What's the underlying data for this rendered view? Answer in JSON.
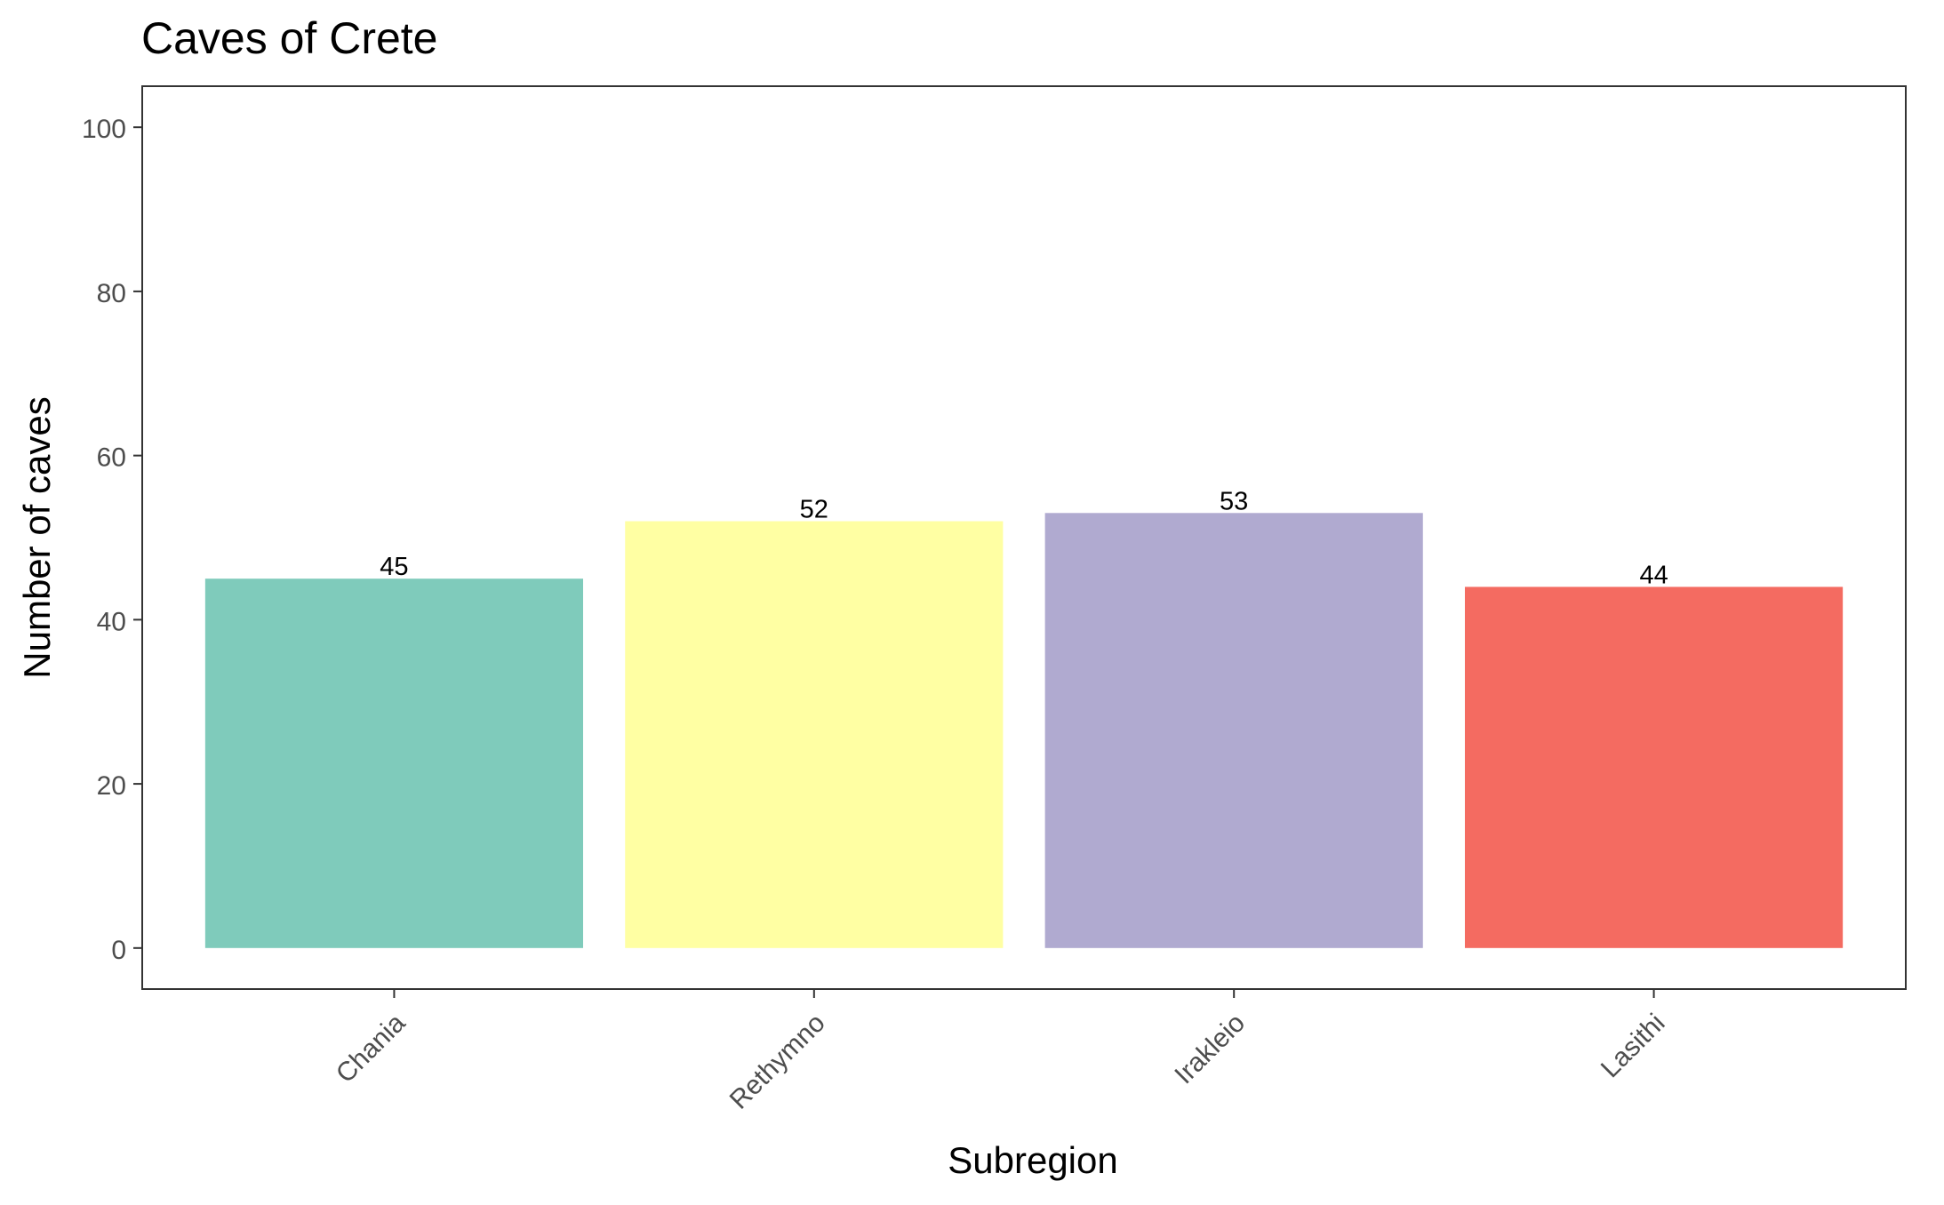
{
  "chart_data": {
    "type": "bar",
    "title": "Caves of Crete",
    "xlabel": "Subregion",
    "ylabel": "Number of caves",
    "categories": [
      "Chania",
      "Rethymno",
      "Irakleio",
      "Lasithi"
    ],
    "values": [
      45,
      52,
      53,
      44
    ],
    "data_labels": [
      "45",
      "52",
      "53",
      "44"
    ],
    "colors": [
      "#7fcbbb",
      "#ffffa3",
      "#b0aad0",
      "#f46b61"
    ],
    "ylim": [
      -5,
      105
    ],
    "yticks": [
      0,
      20,
      40,
      60,
      80,
      100
    ],
    "grid": false,
    "legend": "none"
  }
}
